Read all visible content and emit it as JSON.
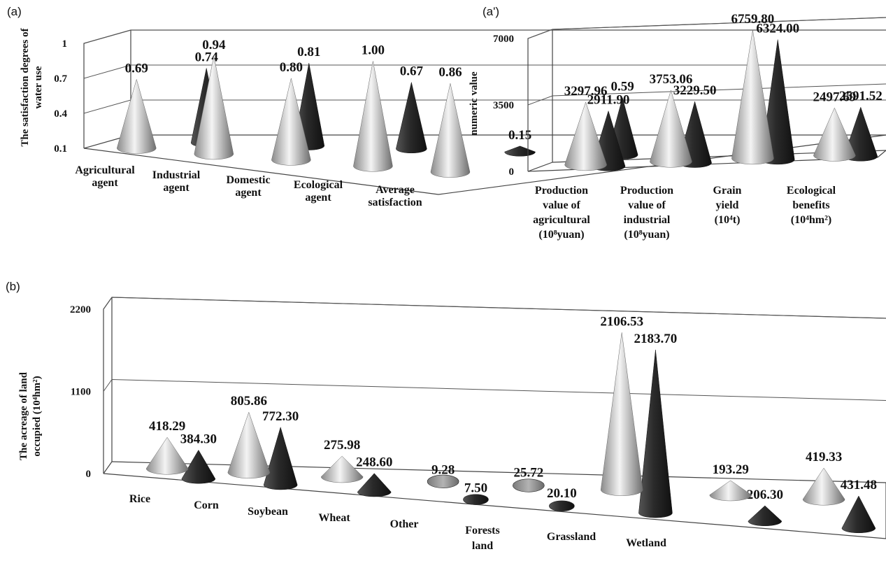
{
  "panels": {
    "a": {
      "letter": "(a)"
    },
    "a2": {
      "letter": "(a')"
    },
    "b": {
      "letter": "(b)"
    }
  },
  "colors": {
    "light_cone": "#dcdcdc",
    "dark_cone": "#2e2e2e",
    "gray_disk": "#9a9a9a"
  },
  "chart_data": [
    {
      "panel": "(a)",
      "type": "bar",
      "ylabel_lines": [
        "The satisfaction degrees of",
        "water use"
      ],
      "yticks": [
        "0.1",
        "0.4",
        "0.7",
        "1"
      ],
      "ylim": [
        0.1,
        1
      ],
      "categories": [
        [
          "Agricultural",
          "agent"
        ],
        [
          "Industrial",
          "agent"
        ],
        [
          "Domestic",
          "agent"
        ],
        [
          "Ecological",
          "agent"
        ],
        [
          "Average",
          "satisfaction"
        ]
      ],
      "series": [
        {
          "color": "light",
          "values": [
            0.69,
            0.94,
            0.8,
            1.0,
            0.86
          ]
        },
        {
          "color": "dark",
          "values": [
            0.74,
            0.81,
            0.67,
            0.15,
            0.59
          ]
        }
      ],
      "value_labels": [
        [
          "0.69",
          "0.94",
          "0.80",
          "1.00",
          "0.86"
        ],
        [
          "0.74",
          "0.81",
          "0.67",
          "0.15",
          "0.59"
        ]
      ]
    },
    {
      "panel": "(a')",
      "type": "bar",
      "ylabel_lines": [
        "numeric value"
      ],
      "yticks": [
        "0",
        "3500",
        "7000"
      ],
      "ylim": [
        0,
        7000
      ],
      "categories": [
        [
          "Production",
          "value of",
          "agricultural",
          "(10⁸yuan)"
        ],
        [
          "Production",
          "value of",
          "industrial",
          "(10⁸yuan)"
        ],
        [
          "Grain",
          "yield",
          "(10⁴t)"
        ],
        [
          "Ecological",
          "benefits",
          "(10⁴hm²)"
        ]
      ],
      "series": [
        {
          "color": "light",
          "values": [
            3297.96,
            3753.06,
            6759.8,
            2497.69
          ]
        },
        {
          "color": "dark",
          "values": [
            2911.9,
            3229.5,
            6324.0,
            2591.52
          ]
        }
      ],
      "value_labels": [
        [
          "3297.96",
          "3753.06",
          "6759.80",
          "2497.69"
        ],
        [
          "2911.90",
          "3229.50",
          "6324.00",
          "2591.52"
        ]
      ]
    },
    {
      "panel": "(b)",
      "type": "bar",
      "ylabel_lines": [
        "The acreage of land",
        "occupied (10⁴hm²)"
      ],
      "yticks": [
        "0",
        "1100",
        "2200"
      ],
      "ylim": [
        0,
        2200
      ],
      "categories": [
        [
          "Rice"
        ],
        [
          "Corn"
        ],
        [
          "Soybean"
        ],
        [
          "Wheat"
        ],
        [
          "Other"
        ],
        [
          "Forests",
          "land"
        ],
        [
          "Grassland"
        ],
        [
          "Wetland"
        ]
      ],
      "series": [
        {
          "color": "light",
          "values": [
            418.29,
            805.86,
            275.98,
            9.28,
            25.72,
            2106.53,
            193.29,
            419.33
          ]
        },
        {
          "color": "dark",
          "values": [
            384.3,
            772.3,
            248.6,
            7.5,
            20.1,
            2183.7,
            206.3,
            431.48
          ]
        }
      ],
      "value_labels": [
        [
          "418.29",
          "805.86",
          "275.98",
          "9.28",
          "25.72",
          "2106.53",
          "193.29",
          "419.33"
        ],
        [
          "384.30",
          "772.30",
          "248.60",
          "7.50",
          "20.10",
          "2183.70",
          "206.30",
          "431.48"
        ]
      ]
    }
  ]
}
